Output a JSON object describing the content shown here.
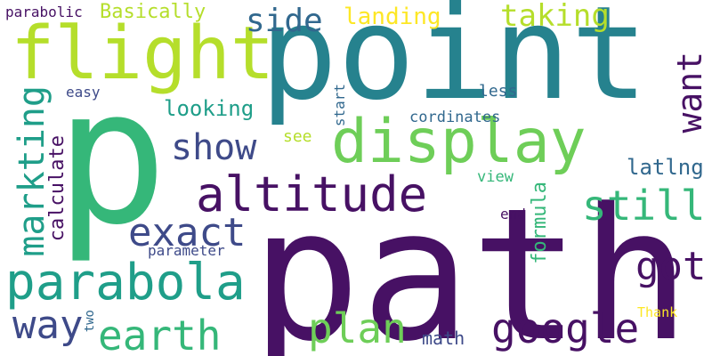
{
  "words": {
    "path": "path",
    "point": "point",
    "p": "p",
    "flight": "flight",
    "display": "display",
    "altitude": "altitude",
    "parabola": "parabola",
    "exact": "exact",
    "show": "show",
    "google": "google",
    "earth": "earth",
    "plan": "plan",
    "way": "way",
    "side": "side",
    "marketing": "markting",
    "got": "got",
    "still": "still",
    "want": "want",
    "taking": "taking",
    "landing": "landing",
    "basically": "Basically",
    "parabolic": "parabolic",
    "looking": "looking",
    "calculate": "calculate",
    "formula": "formula",
    "latlng": "latlng",
    "easy": "easy",
    "see": "see",
    "start": "start",
    "less": "less",
    "cordinates": "cordinates",
    "view": "view",
    "end": "end",
    "parameter": "parameter",
    "math": "math",
    "two": "two",
    "thank": "Thank"
  },
  "palette": {
    "dark_purple": "#471164",
    "indigo": "#3e4a89",
    "blue": "#31688e",
    "teal": "#26828e",
    "sea": "#1f9e89",
    "green": "#35b779",
    "light_green": "#6ece58",
    "lime": "#b5de2b",
    "yellow": "#fde725"
  }
}
